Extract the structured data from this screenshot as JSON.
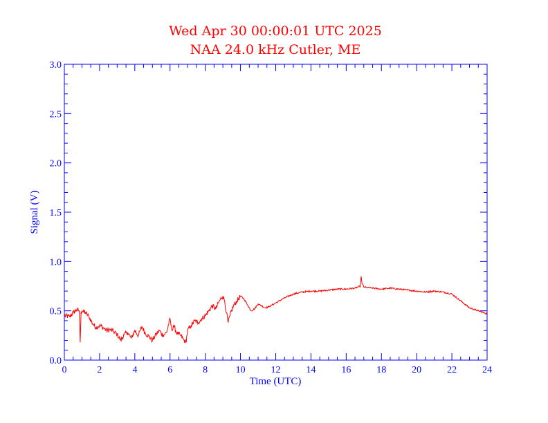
{
  "chart_data": {
    "type": "line",
    "title": "Wed Apr 30 00:00:01 UTC 2025",
    "subtitle": "NAA 24.0 kHz Cutler, ME",
    "xlabel": "Time (UTC)",
    "ylabel": "Signal (V)",
    "xlim": [
      0,
      24
    ],
    "ylim": [
      0.0,
      3.0
    ],
    "x_ticks": [
      "0",
      "2",
      "4",
      "6",
      "8",
      "10",
      "12",
      "14",
      "16",
      "18",
      "20",
      "22",
      "24"
    ],
    "y_ticks": [
      "0.0",
      "0.5",
      "1.0",
      "1.5",
      "2.0",
      "2.5",
      "3.0"
    ],
    "grid": false,
    "colors": {
      "axes": "#0000ff",
      "title": "#ff0000",
      "series": "#ff0000"
    },
    "series": [
      {
        "x": [
          0.0,
          0.3,
          0.5,
          0.7,
          0.85,
          0.9,
          0.95,
          1.0,
          1.2,
          1.4,
          1.6,
          1.8,
          2.0,
          2.2,
          2.4,
          2.6,
          2.8,
          3.0,
          3.2,
          3.4,
          3.6,
          3.8,
          4.0,
          4.2,
          4.4,
          4.6,
          4.8,
          5.0,
          5.2,
          5.4,
          5.6,
          5.8,
          6.0,
          6.1,
          6.2,
          6.4,
          6.6,
          6.8,
          6.9,
          7.0,
          7.2,
          7.4,
          7.6,
          7.8,
          8.0,
          8.2,
          8.4,
          8.6,
          8.8,
          9.0,
          9.1,
          9.2,
          9.3,
          9.4,
          9.6,
          9.8,
          10.0,
          10.2,
          10.4,
          10.6,
          10.8,
          11.0,
          11.2,
          11.4,
          11.6,
          11.8,
          12.0,
          12.5,
          13.0,
          13.5,
          14.0,
          14.5,
          15.0,
          15.5,
          16.0,
          16.5,
          16.8,
          16.85,
          16.9,
          17.0,
          17.5,
          18.0,
          18.5,
          19.0,
          19.5,
          20.0,
          20.5,
          21.0,
          21.5,
          22.0,
          22.5,
          23.0,
          23.5,
          24.0
        ],
        "values": [
          0.45,
          0.44,
          0.48,
          0.51,
          0.5,
          0.18,
          0.49,
          0.5,
          0.48,
          0.44,
          0.37,
          0.33,
          0.35,
          0.33,
          0.3,
          0.31,
          0.29,
          0.26,
          0.2,
          0.26,
          0.28,
          0.22,
          0.3,
          0.25,
          0.34,
          0.27,
          0.24,
          0.2,
          0.26,
          0.3,
          0.25,
          0.28,
          0.42,
          0.3,
          0.35,
          0.27,
          0.25,
          0.2,
          0.18,
          0.3,
          0.35,
          0.4,
          0.38,
          0.42,
          0.45,
          0.5,
          0.55,
          0.52,
          0.6,
          0.65,
          0.6,
          0.48,
          0.38,
          0.45,
          0.55,
          0.6,
          0.65,
          0.62,
          0.56,
          0.5,
          0.52,
          0.57,
          0.55,
          0.53,
          0.54,
          0.56,
          0.58,
          0.63,
          0.67,
          0.69,
          0.7,
          0.7,
          0.71,
          0.72,
          0.72,
          0.73,
          0.75,
          0.85,
          0.78,
          0.74,
          0.73,
          0.72,
          0.73,
          0.72,
          0.71,
          0.7,
          0.69,
          0.7,
          0.69,
          0.67,
          0.6,
          0.53,
          0.5,
          0.47
        ]
      }
    ]
  }
}
